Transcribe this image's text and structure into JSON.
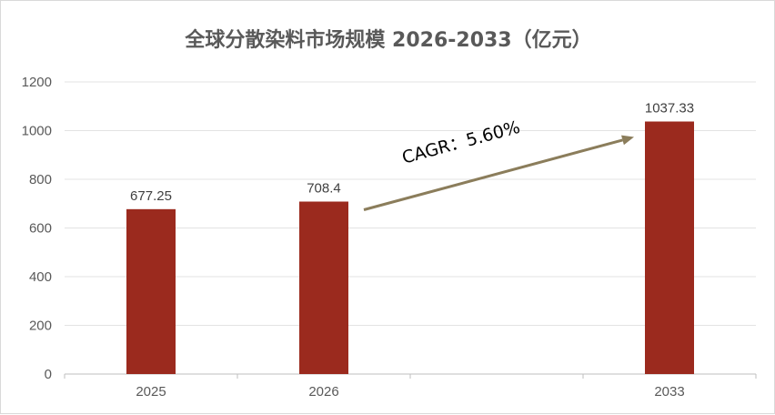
{
  "chart_data": {
    "type": "bar",
    "title": "全球分散染料市场规模 2026-2033（亿元）",
    "categories": [
      "2025",
      "2026",
      "",
      "2033"
    ],
    "values": [
      677.25,
      708.4,
      null,
      1037.33
    ],
    "data_labels": [
      "677.25",
      "708.4",
      "",
      "1037.33"
    ],
    "ylim": [
      0,
      1200
    ],
    "yticks": [
      0,
      200,
      400,
      600,
      800,
      1000,
      1200
    ],
    "grid": true,
    "bar_color": "#9B2A1E",
    "annotation": {
      "text": "CAGR：5.60%",
      "from_category": "2026",
      "to_category": "2033",
      "arrow_color": "#8B7D5B"
    }
  }
}
